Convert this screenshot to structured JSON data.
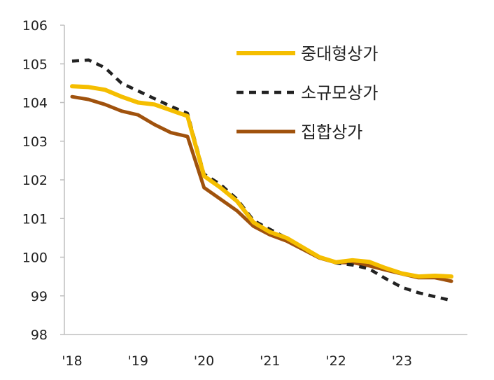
{
  "chart_data": {
    "type": "line",
    "title": "",
    "xlabel": "",
    "ylabel": "",
    "ylim": [
      98,
      106
    ],
    "yticks": [
      98,
      99,
      100,
      101,
      102,
      103,
      104,
      105,
      106
    ],
    "ytick_labels": [
      "98",
      "99",
      "100",
      "101",
      "102",
      "103",
      "104",
      "105",
      "106"
    ],
    "xtick_labels": [
      "'18",
      "'19",
      "'20",
      "'21",
      "'22",
      "'23"
    ],
    "x_positions_quarters": [
      0,
      4,
      8,
      12,
      16,
      20
    ],
    "legend_position": "top-right",
    "grid": false,
    "series": [
      {
        "name": "중대형상가",
        "color": "#F5BE00",
        "style": "solid",
        "values": [
          104.42,
          104.4,
          104.33,
          104.15,
          104.0,
          103.95,
          103.8,
          103.65,
          102.1,
          101.8,
          101.45,
          100.9,
          100.65,
          100.5,
          100.25,
          100.0,
          99.87,
          99.92,
          99.88,
          99.72,
          99.58,
          99.5,
          99.52,
          99.5
        ],
        "values_note": "quarterly"
      },
      {
        "name": "소규모상가",
        "color": "#222222",
        "style": "dashed",
        "values": [
          105.07,
          105.1,
          104.9,
          104.5,
          104.3,
          104.1,
          103.9,
          103.72,
          102.15,
          101.88,
          101.5,
          100.95,
          100.72,
          100.5,
          100.23,
          100.0,
          99.85,
          99.8,
          99.7,
          99.45,
          99.22,
          99.08,
          98.98,
          98.88
        ]
      },
      {
        "name": "집합상가",
        "color": "#A0520D",
        "style": "solid",
        "values": [
          104.15,
          104.08,
          103.95,
          103.78,
          103.68,
          103.43,
          103.22,
          103.12,
          101.8,
          101.5,
          101.2,
          100.8,
          100.58,
          100.42,
          100.2,
          99.98,
          99.86,
          99.86,
          99.78,
          99.67,
          99.57,
          99.47,
          99.47,
          99.38
        ]
      }
    ]
  }
}
